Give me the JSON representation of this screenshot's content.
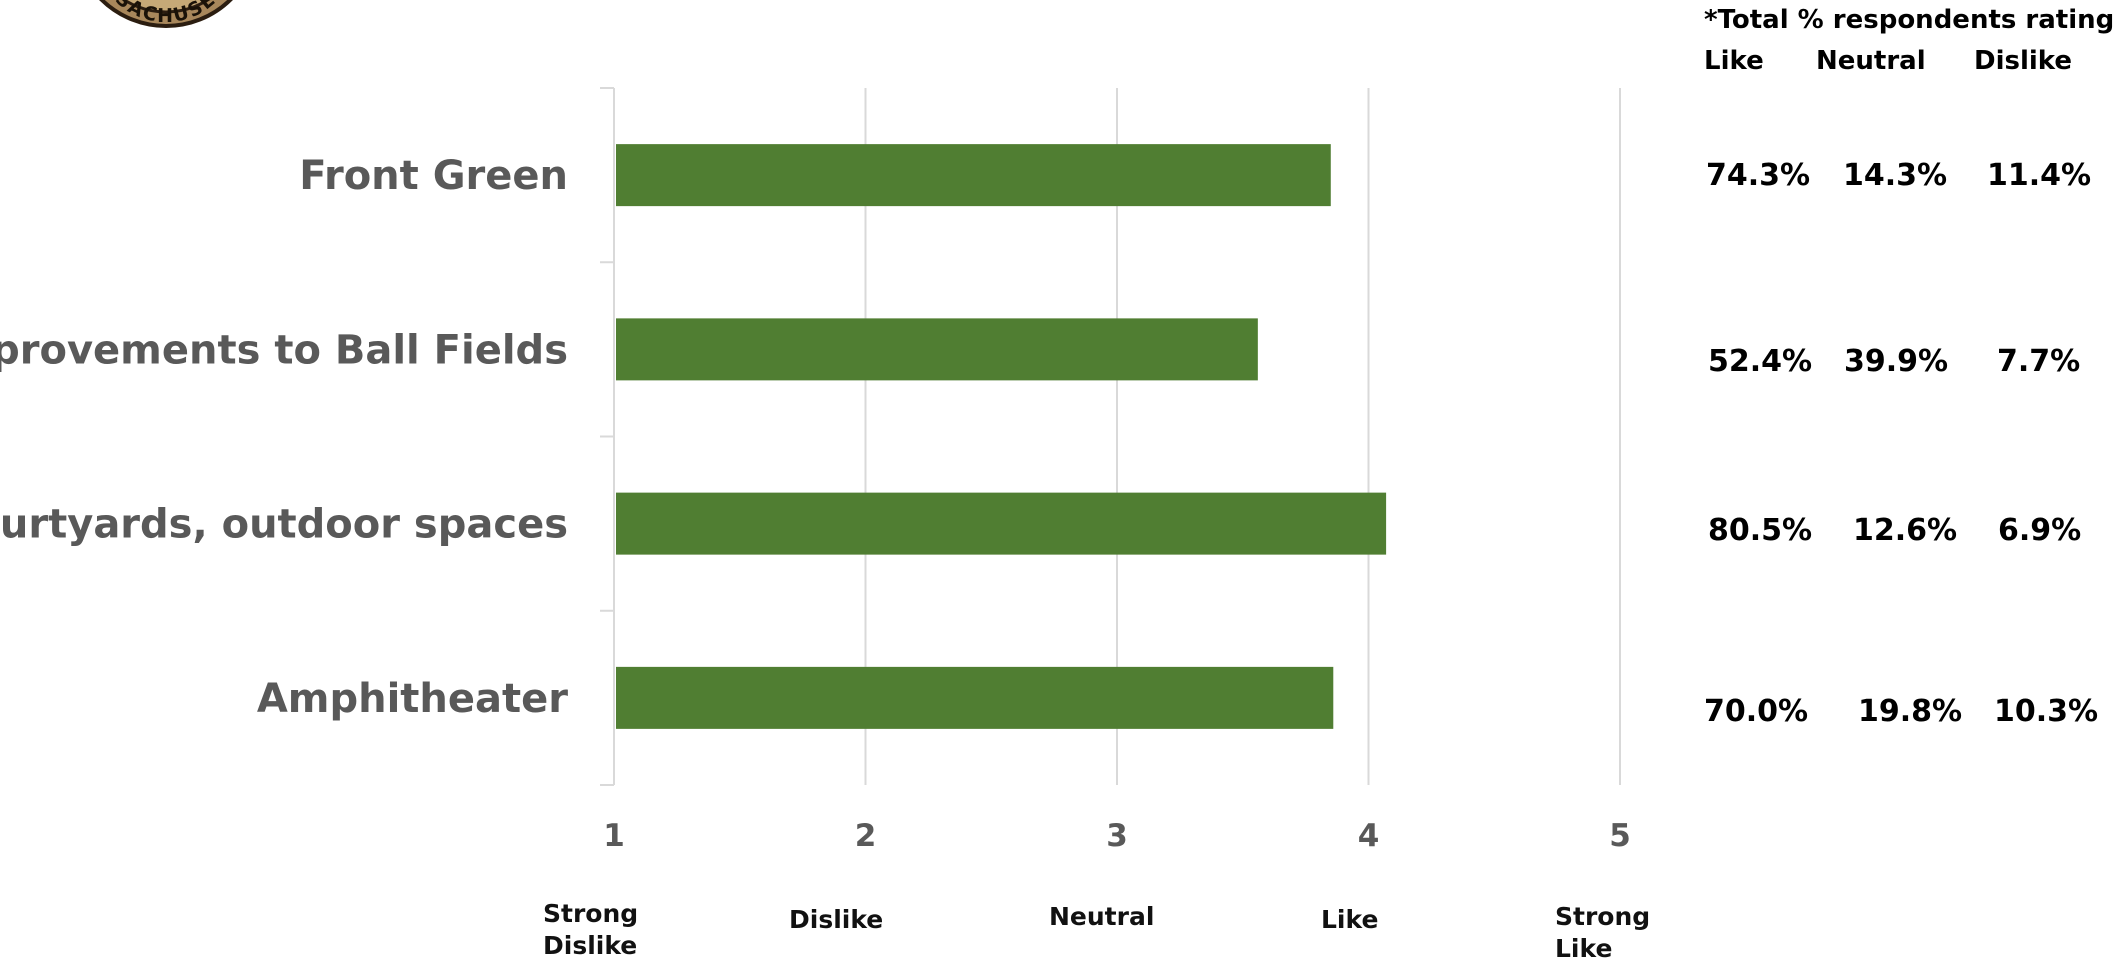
{
  "seal": {
    "text": "SSACHUSET"
  },
  "chart_data": {
    "type": "bar",
    "orientation": "horizontal",
    "categories": [
      "Front Green",
      "Improvements to Ball Fields",
      "Courtyards, outdoor spaces",
      "Amphitheater"
    ],
    "values": [
      3.85,
      3.56,
      4.07,
      3.86
    ],
    "xlim": [
      1,
      5
    ],
    "xticks": [
      "1",
      "2",
      "3",
      "4",
      "5"
    ],
    "scale_words": [
      [
        "Strong",
        "Dislike"
      ],
      [
        "Dislike"
      ],
      [
        "Neutral"
      ],
      [
        "Like"
      ],
      [
        "Strong",
        "Like"
      ]
    ],
    "grid": true,
    "bar_color": "#507e32"
  },
  "percent_table": {
    "title": "*Total % respondents rating as",
    "headers": [
      "Like",
      "Neutral",
      "Dislike"
    ],
    "rows": [
      [
        "74.3%",
        "14.3%",
        "11.4%"
      ],
      [
        "52.4%",
        "39.9%",
        "7.7%"
      ],
      [
        "80.5%",
        "12.6%",
        "6.9%"
      ],
      [
        "70.0%",
        "19.8%",
        "10.3%"
      ]
    ]
  }
}
